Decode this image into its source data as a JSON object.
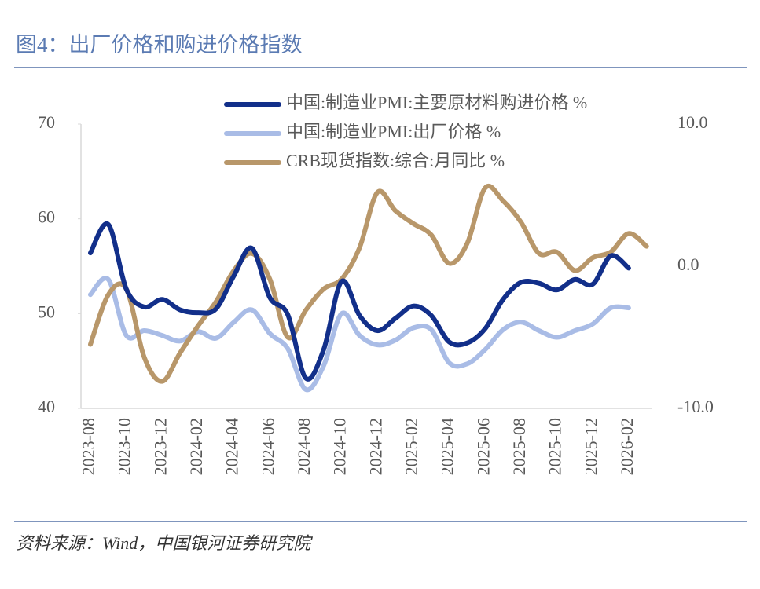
{
  "chart_data": {
    "type": "line",
    "title": "图4：出厂价格和购进价格指数",
    "source": "资料来源：Wind，中国银河证券研究院",
    "categories": [
      "2023-08",
      null,
      "2023-10",
      null,
      "2023-12",
      null,
      "2024-02",
      null,
      "2024-04",
      null,
      "2024-06",
      null,
      "2024-08",
      null,
      "2024-10",
      null,
      "2024-12",
      null,
      "2025-02",
      null,
      "2025-04",
      null,
      "2025-06",
      null,
      "2025-08",
      null,
      "2025-10",
      null,
      "2025-12",
      null,
      "2026-02",
      null
    ],
    "series": [
      {
        "name": "中国:制造业PMI:主要原材料购进价格 %",
        "color": "#122f8a",
        "axis": "y",
        "values": [
          56.4,
          59.4,
          52.6,
          50.7,
          51.5,
          50.4,
          50.1,
          50.5,
          54.0,
          56.9,
          51.7,
          49.9,
          43.2,
          46.2,
          53.4,
          49.8,
          48.2,
          49.5,
          50.8,
          49.8,
          47.0,
          46.9,
          48.4,
          51.5,
          53.3,
          53.2,
          52.5,
          53.6,
          53.1,
          56.1,
          54.8,
          null
        ]
      },
      {
        "name": "中国:制造业PMI:出厂价格 %",
        "color": "#a9bce6",
        "axis": "y",
        "values": [
          52.0,
          53.6,
          47.7,
          48.2,
          47.7,
          47.1,
          48.1,
          47.4,
          49.1,
          50.4,
          47.9,
          46.3,
          42.0,
          44.5,
          50.0,
          47.7,
          46.7,
          47.2,
          48.5,
          48.3,
          44.8,
          44.7,
          46.2,
          48.3,
          49.1,
          48.2,
          47.5,
          48.2,
          48.9,
          50.6,
          50.6,
          null
        ]
      },
      {
        "name": "CRB现货指数:综合:月同比 %",
        "color": "#b8976a",
        "axis": "y2",
        "values": [
          -5.5,
          -2.0,
          -1.6,
          -6.4,
          -8.1,
          -6.1,
          -4.2,
          -2.5,
          -0.3,
          0.9,
          -0.9,
          -5.0,
          -3.1,
          -1.6,
          -0.9,
          1.3,
          5.2,
          3.9,
          3.0,
          2.2,
          0.2,
          1.6,
          5.5,
          4.6,
          3.1,
          0.9,
          1.0,
          -0.3,
          0.6,
          1.0,
          2.3,
          1.4
        ]
      }
    ],
    "ylim": [
      40,
      70
    ],
    "yticks": [
      40,
      50,
      60,
      70
    ],
    "y2lim": [
      -10,
      10
    ],
    "y2ticks": [
      {
        "value": -10,
        "label": "-10.0"
      },
      {
        "value": 0,
        "label": "0.0"
      },
      {
        "value": 10,
        "label": "10.0"
      }
    ],
    "legend": "top"
  }
}
